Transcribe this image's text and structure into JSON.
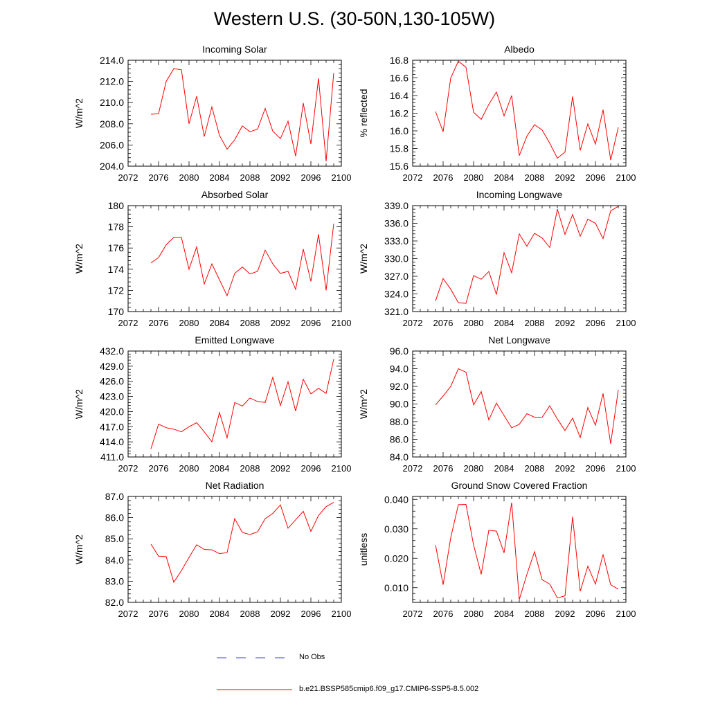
{
  "title": "Western U.S. (30-50N,130-105W)",
  "legend": {
    "no_obs_label": "No Obs",
    "series_label": "b.e21.BSSP585cmip6.f09_g17.CMIP6-SSP5-8.5.002",
    "no_obs_color": "#3b3bd6",
    "series_color": "#ff0000"
  },
  "chart_data": [
    {
      "type": "line",
      "title": "Incoming Solar",
      "ylabel": "W/m^2",
      "xlim": [
        2072,
        2100
      ],
      "ylim": [
        204,
        214
      ],
      "xticks": [
        "2072",
        "2076",
        "2080",
        "2084",
        "2088",
        "2092",
        "2096",
        "2100"
      ],
      "yticks": [
        "204.0",
        "206.0",
        "208.0",
        "210.0",
        "212.0",
        "214.0"
      ],
      "x": [
        2075,
        2076,
        2077,
        2078,
        2079,
        2080,
        2081,
        2082,
        2083,
        2084,
        2085,
        2086,
        2087,
        2088,
        2089,
        2090,
        2091,
        2092,
        2093,
        2094,
        2095,
        2096,
        2097,
        2098,
        2099
      ],
      "values": [
        208.9,
        208.95,
        212.0,
        213.2,
        213.1,
        208.0,
        210.6,
        206.8,
        209.6,
        206.9,
        205.6,
        206.5,
        207.8,
        207.25,
        207.5,
        209.45,
        207.3,
        206.6,
        208.25,
        204.95,
        209.95,
        206.1,
        212.3,
        204.45,
        212.8
      ]
    },
    {
      "type": "line",
      "title": "Albedo",
      "ylabel": "% reflected",
      "xlim": [
        2072,
        2100
      ],
      "ylim": [
        15.6,
        16.8
      ],
      "xticks": [
        "2072",
        "2076",
        "2080",
        "2084",
        "2088",
        "2092",
        "2096",
        "2100"
      ],
      "yticks": [
        "15.6",
        "15.8",
        "16.0",
        "16.2",
        "16.4",
        "16.6",
        "16.8"
      ],
      "x": [
        2075,
        2076,
        2077,
        2078,
        2079,
        2080,
        2081,
        2082,
        2083,
        2084,
        2085,
        2086,
        2087,
        2088,
        2089,
        2090,
        2091,
        2092,
        2093,
        2094,
        2095,
        2096,
        2097,
        2098,
        2099
      ],
      "values": [
        16.22,
        15.99,
        16.6,
        16.79,
        16.72,
        16.21,
        16.13,
        16.3,
        16.44,
        16.17,
        16.4,
        15.72,
        15.94,
        16.07,
        16.01,
        15.86,
        15.69,
        15.76,
        16.39,
        15.78,
        16.08,
        15.85,
        16.24,
        15.67,
        16.04
      ]
    },
    {
      "type": "line",
      "title": "Absorbed Solar",
      "ylabel": "W/m^2",
      "xlim": [
        2072,
        2100
      ],
      "ylim": [
        170,
        180
      ],
      "xticks": [
        "2072",
        "2076",
        "2080",
        "2084",
        "2088",
        "2092",
        "2096",
        "2100"
      ],
      "yticks": [
        "170",
        "172",
        "174",
        "176",
        "178",
        "180"
      ],
      "x": [
        2075,
        2076,
        2077,
        2078,
        2079,
        2080,
        2081,
        2082,
        2083,
        2084,
        2085,
        2086,
        2087,
        2088,
        2089,
        2090,
        2091,
        2092,
        2093,
        2094,
        2095,
        2096,
        2097,
        2098,
        2099
      ],
      "values": [
        174.6,
        175.1,
        176.3,
        177.0,
        177.0,
        174.0,
        176.1,
        172.6,
        174.5,
        173.0,
        171.5,
        173.6,
        174.2,
        173.55,
        173.8,
        175.8,
        174.5,
        173.6,
        173.8,
        172.1,
        175.9,
        172.85,
        177.3,
        172.0,
        178.3
      ]
    },
    {
      "type": "line",
      "title": "Incoming Longwave",
      "ylabel": "W/m^2",
      "xlim": [
        2072,
        2100
      ],
      "ylim": [
        321,
        339
      ],
      "xticks": [
        "2072",
        "2076",
        "2080",
        "2084",
        "2088",
        "2092",
        "2096",
        "2100"
      ],
      "yticks": [
        "321.0",
        "324.0",
        "327.0",
        "330.0",
        "333.0",
        "336.0",
        "339.0"
      ],
      "x": [
        2075,
        2076,
        2077,
        2078,
        2079,
        2080,
        2081,
        2082,
        2083,
        2084,
        2085,
        2086,
        2087,
        2088,
        2089,
        2090,
        2091,
        2092,
        2093,
        2094,
        2095,
        2096,
        2097,
        2098,
        2099
      ],
      "values": [
        322.8,
        326.6,
        324.8,
        322.5,
        322.4,
        327.1,
        326.5,
        327.8,
        323.9,
        331.0,
        327.6,
        334.2,
        332.1,
        334.3,
        333.5,
        331.9,
        338.4,
        334.1,
        337.5,
        333.8,
        336.7,
        336.0,
        333.4,
        338.1,
        338.9
      ]
    },
    {
      "type": "line",
      "title": "Emitted Longwave",
      "ylabel": "W/m^2",
      "xlim": [
        2072,
        2100
      ],
      "ylim": [
        411,
        432
      ],
      "xticks": [
        "2072",
        "2076",
        "2080",
        "2084",
        "2088",
        "2092",
        "2096",
        "2100"
      ],
      "yticks": [
        "411.0",
        "414.0",
        "417.0",
        "420.0",
        "423.0",
        "426.0",
        "429.0",
        "432.0"
      ],
      "x": [
        2075,
        2076,
        2077,
        2078,
        2079,
        2080,
        2081,
        2082,
        2083,
        2084,
        2085,
        2086,
        2087,
        2088,
        2089,
        2090,
        2091,
        2092,
        2093,
        2094,
        2095,
        2096,
        2097,
        2098,
        2099
      ],
      "values": [
        412.6,
        417.5,
        416.8,
        416.5,
        416.0,
        417.0,
        417.8,
        416.0,
        414.0,
        419.8,
        414.8,
        421.8,
        421.1,
        422.7,
        422.0,
        421.8,
        426.8,
        421.2,
        425.9,
        420.1,
        426.4,
        423.5,
        424.6,
        423.6,
        430.4
      ]
    },
    {
      "type": "line",
      "title": "Net Longwave",
      "ylabel": "W/m^2",
      "xlim": [
        2072,
        2100
      ],
      "ylim": [
        84,
        96
      ],
      "xticks": [
        "2072",
        "2076",
        "2080",
        "2084",
        "2088",
        "2092",
        "2096",
        "2100"
      ],
      "yticks": [
        "84.0",
        "86.0",
        "88.0",
        "90.0",
        "92.0",
        "94.0",
        "96.0"
      ],
      "x": [
        2075,
        2076,
        2077,
        2078,
        2079,
        2080,
        2081,
        2082,
        2083,
        2084,
        2085,
        2086,
        2087,
        2088,
        2089,
        2090,
        2091,
        2092,
        2093,
        2094,
        2095,
        2096,
        2097,
        2098,
        2099
      ],
      "values": [
        89.9,
        90.9,
        92.0,
        94.0,
        93.6,
        89.9,
        91.4,
        88.2,
        90.1,
        88.7,
        87.3,
        87.7,
        88.9,
        88.5,
        88.5,
        89.8,
        88.3,
        87.0,
        88.4,
        86.2,
        89.6,
        87.6,
        91.2,
        85.5,
        91.6
      ]
    },
    {
      "type": "line",
      "title": "Net Radiation",
      "ylabel": "W/m^2",
      "xlim": [
        2072,
        2100
      ],
      "ylim": [
        82,
        87
      ],
      "xticks": [
        "2072",
        "2076",
        "2080",
        "2084",
        "2088",
        "2092",
        "2096",
        "2100"
      ],
      "yticks": [
        "82.0",
        "83.0",
        "84.0",
        "85.0",
        "86.0",
        "87.0"
      ],
      "x": [
        2075,
        2076,
        2077,
        2078,
        2079,
        2080,
        2081,
        2082,
        2083,
        2084,
        2085,
        2086,
        2087,
        2088,
        2089,
        2090,
        2091,
        2092,
        2093,
        2094,
        2095,
        2096,
        2097,
        2098,
        2099
      ],
      "values": [
        84.75,
        84.18,
        84.16,
        82.95,
        83.5,
        84.12,
        84.72,
        84.5,
        84.48,
        84.3,
        84.35,
        85.95,
        85.3,
        85.2,
        85.33,
        85.95,
        86.2,
        86.6,
        85.5,
        85.9,
        86.3,
        85.35,
        86.1,
        86.52,
        86.72
      ]
    },
    {
      "type": "line",
      "title": "Ground Snow Covered Fraction",
      "ylabel": "unitless",
      "xlim": [
        2072,
        2100
      ],
      "ylim": [
        0.005,
        0.041
      ],
      "xticks": [
        "2072",
        "2076",
        "2080",
        "2084",
        "2088",
        "2092",
        "2096",
        "2100"
      ],
      "yticks": [
        "0.010",
        "0.020",
        "0.030",
        "0.040"
      ],
      "ytick_values": [
        0.01,
        0.02,
        0.03,
        0.04
      ],
      "x": [
        2075,
        2076,
        2077,
        2078,
        2079,
        2080,
        2081,
        2082,
        2083,
        2084,
        2085,
        2086,
        2087,
        2088,
        2089,
        2090,
        2091,
        2092,
        2093,
        2094,
        2095,
        2096,
        2097,
        2098,
        2099
      ],
      "values": [
        0.0245,
        0.011,
        0.027,
        0.0382,
        0.0383,
        0.0245,
        0.0145,
        0.0295,
        0.0292,
        0.0218,
        0.0389,
        0.006,
        0.0145,
        0.0222,
        0.0127,
        0.0112,
        0.0065,
        0.0072,
        0.0341,
        0.0088,
        0.0173,
        0.0112,
        0.0213,
        0.011,
        0.0095
      ]
    }
  ]
}
